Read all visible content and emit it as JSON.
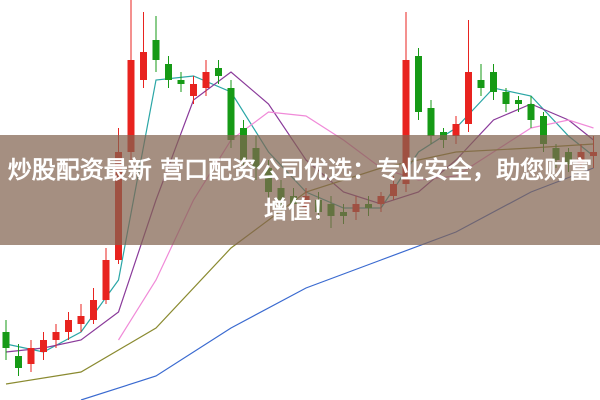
{
  "chart_data": {
    "type": "candlestick",
    "title": "炒股配资最新 营口配资公司优选：专业安全，助您财富增值！",
    "open": [
      17,
      11,
      9,
      12,
      15,
      17,
      19,
      20,
      25,
      35,
      62,
      80,
      90,
      84,
      80,
      76,
      78,
      83,
      78,
      68,
      63,
      58,
      53,
      51,
      48,
      50,
      49,
      47,
      47,
      49,
      49,
      51,
      54,
      86,
      73,
      67,
      66,
      69,
      80,
      82,
      77,
      75,
      74,
      71,
      63,
      62,
      59,
      61
    ],
    "high": [
      20,
      14,
      15,
      17,
      19,
      22,
      24,
      28,
      38,
      68,
      100,
      97,
      96,
      86,
      82,
      81,
      85,
      85,
      80,
      70,
      66,
      60,
      55,
      53,
      53,
      52,
      51,
      49,
      51,
      51,
      52,
      56,
      97,
      88,
      75,
      68,
      71,
      95,
      84,
      84,
      78,
      76,
      76,
      72,
      64,
      63,
      64,
      66
    ],
    "low": [
      10,
      6,
      7,
      10,
      13,
      15,
      17,
      19,
      24,
      34,
      60,
      78,
      82,
      78,
      77,
      74,
      76,
      79,
      63,
      58,
      55,
      50,
      48,
      47,
      46,
      45,
      43,
      44,
      45,
      46,
      47,
      50,
      52,
      70,
      64,
      63,
      64,
      67,
      76,
      75,
      72,
      72,
      68,
      62,
      58,
      57,
      58,
      58
    ],
    "close": [
      13,
      8,
      13,
      15,
      17,
      20,
      21,
      25,
      35,
      62,
      85,
      87,
      85,
      80,
      79,
      79,
      82,
      81,
      65,
      60,
      58,
      52,
      50,
      49,
      51,
      47,
      46,
      46,
      49,
      48,
      51,
      54,
      85,
      72,
      66,
      65,
      69,
      82,
      78,
      77,
      74,
      74,
      70,
      64,
      60,
      59,
      62,
      62
    ],
    "up_color": "#e8231f",
    "down_color": "#169a16",
    "ylim": [
      0,
      100
    ],
    "lines": [
      {
        "color": "#2aa6a6",
        "x": [
          0,
          3,
          6,
          9,
          12,
          15,
          18,
          21,
          24,
          27,
          30,
          33,
          36,
          39,
          42,
          45,
          47
        ],
        "values": [
          14,
          12,
          17,
          30,
          80,
          81,
          77,
          62,
          52,
          48,
          48,
          62,
          68,
          78,
          76,
          66,
          61
        ]
      },
      {
        "color": "#8a3a9a",
        "x": [
          0,
          3,
          6,
          9,
          12,
          15,
          18,
          21,
          24,
          27,
          30,
          33,
          36,
          39,
          42,
          45,
          47
        ],
        "values": [
          12,
          13,
          15,
          22,
          50,
          75,
          82,
          74,
          60,
          52,
          49,
          52,
          60,
          70,
          74,
          70,
          65
        ]
      },
      {
        "color": "#f08ad8",
        "x": [
          9,
          12,
          15,
          18,
          21,
          24,
          27,
          30,
          33,
          36,
          39,
          42,
          45,
          47
        ],
        "values": [
          15,
          30,
          50,
          65,
          72,
          71,
          65,
          58,
          55,
          56,
          62,
          68,
          70,
          68
        ]
      },
      {
        "color": "#8a8a30",
        "x": [
          0,
          6,
          12,
          18,
          24,
          30,
          36,
          42,
          47
        ],
        "values": [
          4,
          7,
          18,
          38,
          52,
          58,
          62,
          63,
          64
        ]
      },
      {
        "color": "#3a6ad0",
        "x": [
          6,
          12,
          18,
          24,
          30,
          36,
          42,
          47
        ],
        "values": [
          0,
          6,
          18,
          28,
          35,
          42,
          52,
          58
        ]
      }
    ]
  }
}
